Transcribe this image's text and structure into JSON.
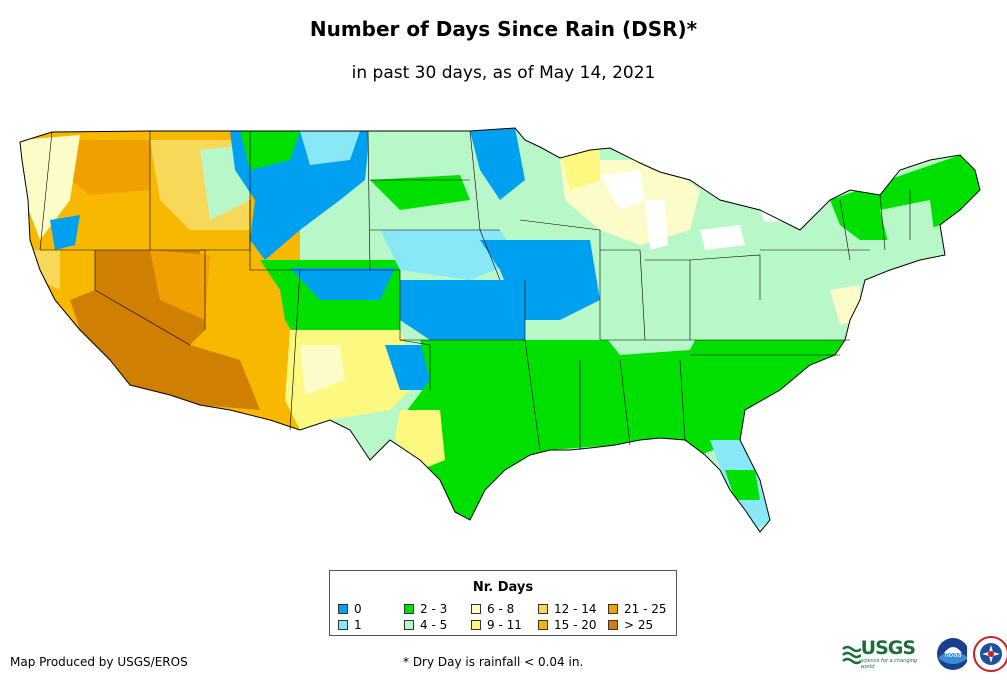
{
  "title": "Number of Days Since Rain (DSR)*",
  "subtitle": "in past 30 days, as of May 14, 2021",
  "legend": {
    "title": "Nr. Days",
    "items": [
      {
        "label": "0",
        "color": "#00a0f0"
      },
      {
        "label": "1",
        "color": "#88e8f8"
      },
      {
        "label": "2 - 3",
        "color": "#00e000"
      },
      {
        "label": "4 - 5",
        "color": "#b8f8c8"
      },
      {
        "label": "6 - 8",
        "color": "#fcfcc8"
      },
      {
        "label": "9 - 11",
        "color": "#fcf880"
      },
      {
        "label": "12 - 14",
        "color": "#f8d858"
      },
      {
        "label": "15 - 20",
        "color": "#f8b800"
      },
      {
        "label": "21 - 25",
        "color": "#f0a000"
      },
      {
        "label": "> 25",
        "color": "#d08000"
      }
    ]
  },
  "credit": "Map Produced by USGS/EROS",
  "footnote": "* Dry Day is rainfall < 0.04 in.",
  "logos": {
    "usgs": "USGS",
    "usgs_tagline": "science for a changing world",
    "noaa": "noaa",
    "nws_icon": "nws-icon"
  }
}
